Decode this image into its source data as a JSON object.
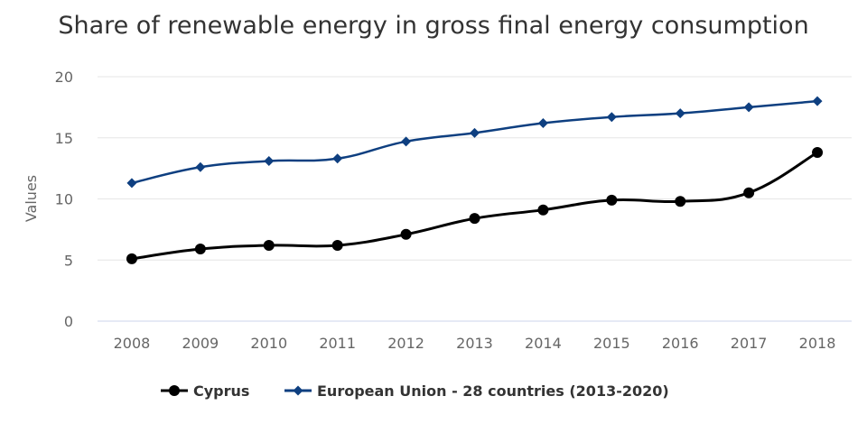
{
  "chart_data": {
    "type": "line",
    "title": "Share of renewable energy in gross final energy consumption",
    "xlabel": "",
    "ylabel": "Values",
    "categories": [
      "2008",
      "2009",
      "2010",
      "2011",
      "2012",
      "2013",
      "2014",
      "2015",
      "2016",
      "2017",
      "2018"
    ],
    "ylim": [
      0,
      20
    ],
    "yticks": [
      0,
      5,
      10,
      15,
      20
    ],
    "grid": true,
    "legend_position": "bottom",
    "series": [
      {
        "name": "Cyprus",
        "color": "#000000",
        "marker": "circle",
        "values": [
          5.1,
          5.9,
          6.2,
          6.2,
          7.1,
          8.4,
          9.1,
          9.9,
          9.8,
          10.5,
          13.8
        ]
      },
      {
        "name": "European Union - 28 countries (2013-2020)",
        "color": "#0e3f80",
        "marker": "diamond",
        "values": [
          11.3,
          12.6,
          13.1,
          13.3,
          14.7,
          15.4,
          16.2,
          16.7,
          17.0,
          17.5,
          18.0
        ]
      }
    ]
  }
}
